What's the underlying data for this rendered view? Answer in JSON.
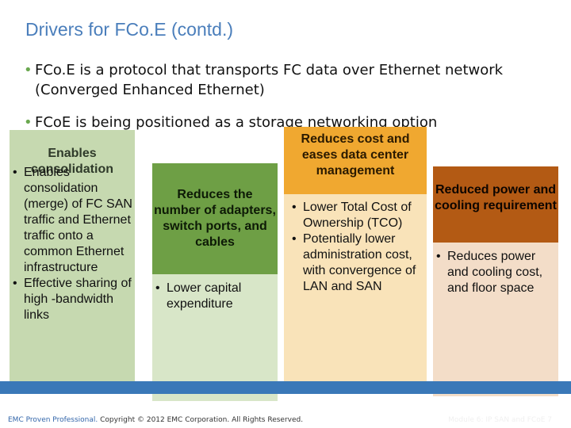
{
  "slide": {
    "title": "Drivers for FCo.E (contd.)",
    "bullets": [
      "FCo.E is a protocol that transports FC data over Ethernet network (Converged Enhanced Ethernet)",
      "FCoE is being positioned as a storage networking option"
    ]
  },
  "cards": [
    {
      "heading": "Enables consolidation",
      "items": [
        "Enables consolidation (merge) of FC SAN traffic and Ethernet traffic onto a common Ethernet infrastructure",
        "Effective sharing of high -bandwidth links"
      ]
    },
    {
      "heading": "Reduces the number of adapters, switch ports, and cables",
      "items": [
        "Lower capital expenditure"
      ]
    },
    {
      "heading": "Reduces cost and eases data center management",
      "items": [
        "Lower Total Cost of Ownership (TCO)",
        "Potentially lower administration cost, with convergence of LAN and SAN"
      ]
    },
    {
      "heading": "Reduced power and cooling requirement",
      "items": [
        "Reduces power and cooling cost, and floor space"
      ]
    }
  ],
  "footer": {
    "brand": "EMC Proven Professional.",
    "copyright": "Copyright © 2012 EMC Corporation. All Rights Reserved.",
    "module": "Module 6: IP SAN and FCoE",
    "page": "7"
  },
  "colors": {
    "title": "#4a7ebb",
    "card1": "#c6d9b0",
    "card2_head": "#6e9f45",
    "card3_head": "#f0a830",
    "card4_head": "#b35a14",
    "footer_bar": "#3a78b8"
  }
}
